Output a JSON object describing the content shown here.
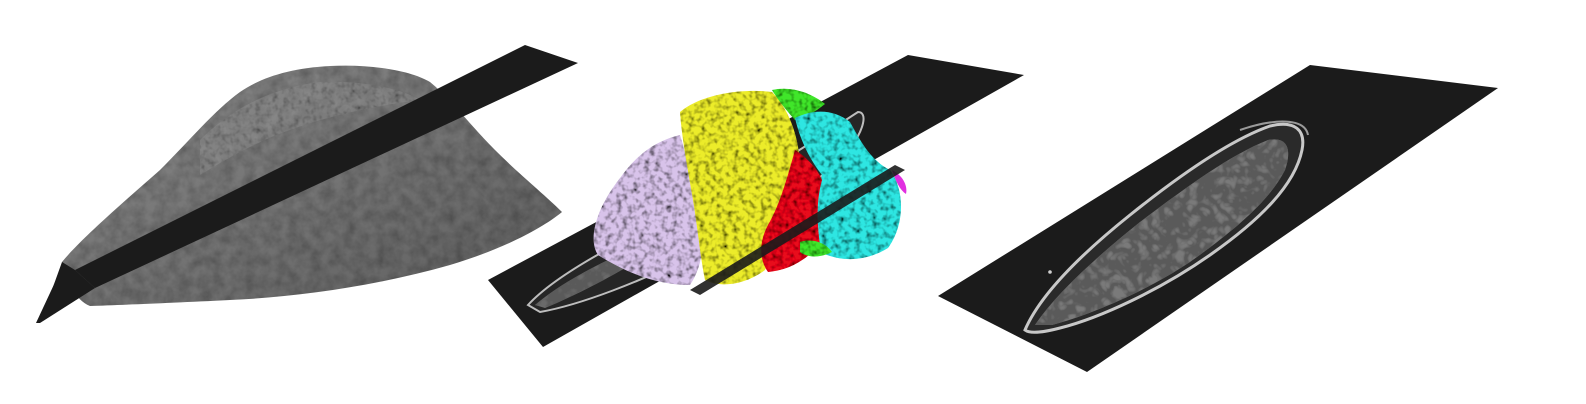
{
  "panels": [
    {
      "id": "surface-render",
      "description_icon": "grayscale-bone-surface-with-slice-plane"
    },
    {
      "id": "segmented-render",
      "description_icon": "color-segmented-bone-with-slice-plane",
      "segment_colors": [
        "#d8c3ea",
        "#ecec2a",
        "#e8101a",
        "#2ee6e2",
        "#3fe62b",
        "#e12fe0"
      ]
    },
    {
      "id": "ct-slice",
      "description_icon": "grayscale-ct-cross-section-slice"
    }
  ],
  "colors": {
    "background": "#ffffff",
    "slice_plane": "#1b1b1b",
    "bone_surface": "#7a7a7a",
    "cortical_shell": "#bdbdbd"
  }
}
